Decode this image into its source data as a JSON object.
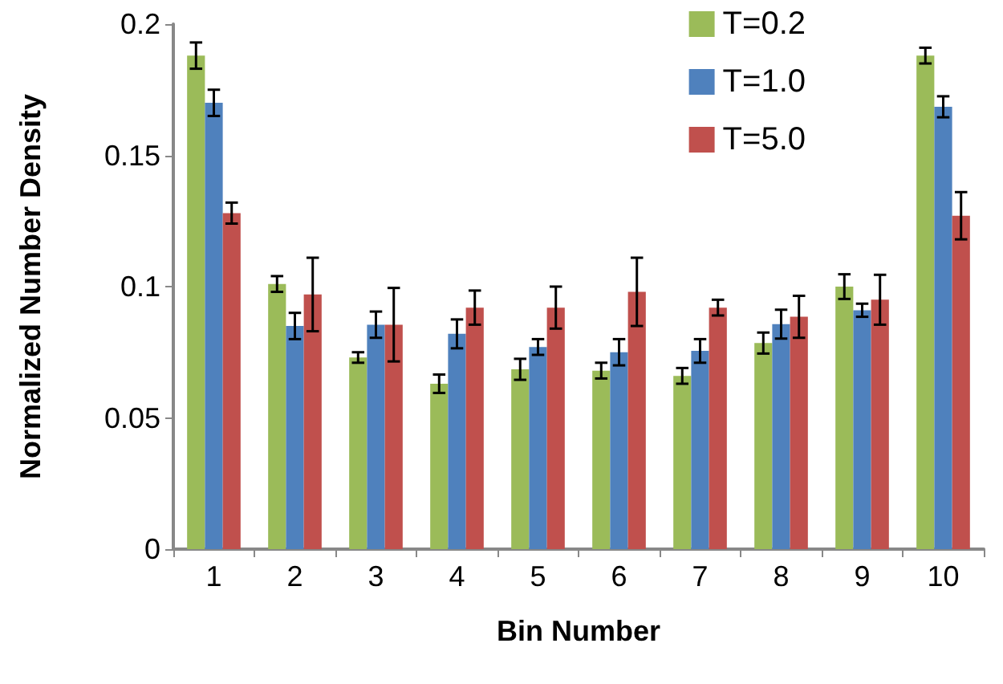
{
  "chart_data": {
    "type": "bar",
    "xlabel": "Bin Number",
    "ylabel": "Normalized Number Density",
    "categories": [
      "1",
      "2",
      "3",
      "4",
      "5",
      "6",
      "7",
      "8",
      "9",
      "10"
    ],
    "series": [
      {
        "name": "T=0.2",
        "color": "#9bbb59",
        "values": [
          0.188,
          0.101,
          0.073,
          0.063,
          0.0685,
          0.068,
          0.066,
          0.0785,
          0.1,
          0.188
        ],
        "errors": [
          0.005,
          0.003,
          0.002,
          0.0035,
          0.004,
          0.003,
          0.003,
          0.004,
          0.0047,
          0.003
        ]
      },
      {
        "name": "T=1.0",
        "color": "#4f81bd",
        "values": [
          0.17,
          0.085,
          0.0855,
          0.082,
          0.077,
          0.075,
          0.0755,
          0.0857,
          0.091,
          0.1685
        ],
        "errors": [
          0.005,
          0.005,
          0.005,
          0.0055,
          0.003,
          0.005,
          0.0045,
          0.0055,
          0.0025,
          0.004
        ]
      },
      {
        "name": "T=5.0",
        "color": "#c0504d",
        "values": [
          0.128,
          0.097,
          0.0855,
          0.092,
          0.092,
          0.098,
          0.092,
          0.0885,
          0.095,
          0.127
        ],
        "errors": [
          0.004,
          0.014,
          0.014,
          0.0065,
          0.008,
          0.013,
          0.003,
          0.008,
          0.0095,
          0.009
        ]
      }
    ],
    "ylim": [
      0,
      0.2
    ],
    "yticks": [
      0,
      0.05,
      0.1,
      0.15,
      0.2
    ],
    "grid": false,
    "legend": "top right"
  }
}
